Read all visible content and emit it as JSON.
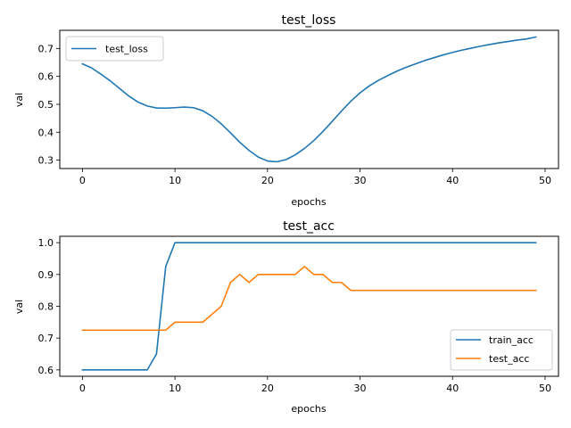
{
  "chart_data": [
    {
      "type": "line",
      "title": "test_loss",
      "xlabel": "epochs",
      "ylabel": "val",
      "xlim": [
        -2.45,
        51.45
      ],
      "ylim": [
        0.27,
        0.765
      ],
      "xticks": [
        "0",
        "10",
        "20",
        "30",
        "40",
        "50"
      ],
      "yticks": [
        "0.3",
        "0.4",
        "0.5",
        "0.6",
        "0.7"
      ],
      "grid": false,
      "legend": "upper-left",
      "x": [
        0,
        1,
        2,
        3,
        4,
        5,
        6,
        7,
        8,
        9,
        10,
        11,
        12,
        13,
        14,
        15,
        16,
        17,
        18,
        19,
        20,
        21,
        22,
        23,
        24,
        25,
        26,
        27,
        28,
        29,
        30,
        31,
        32,
        33,
        34,
        35,
        36,
        37,
        38,
        39,
        40,
        41,
        42,
        43,
        44,
        45,
        46,
        47,
        48,
        49
      ],
      "series": [
        {
          "name": "test_loss",
          "color": "#1f77b4",
          "values": [
            0.645,
            0.63,
            0.608,
            0.584,
            0.557,
            0.53,
            0.508,
            0.494,
            0.487,
            0.486,
            0.488,
            0.49,
            0.488,
            0.477,
            0.457,
            0.43,
            0.398,
            0.364,
            0.335,
            0.311,
            0.297,
            0.294,
            0.302,
            0.319,
            0.342,
            0.37,
            0.403,
            0.439,
            0.476,
            0.511,
            0.541,
            0.566,
            0.586,
            0.603,
            0.619,
            0.633,
            0.645,
            0.657,
            0.667,
            0.677,
            0.686,
            0.694,
            0.701,
            0.708,
            0.714,
            0.72,
            0.725,
            0.73,
            0.734,
            0.741
          ]
        }
      ]
    },
    {
      "type": "line",
      "title": "test_acc",
      "xlabel": "epochs",
      "ylabel": "val",
      "xlim": [
        -2.45,
        51.45
      ],
      "ylim": [
        0.58,
        1.02
      ],
      "xticks": [
        "0",
        "10",
        "20",
        "30",
        "40",
        "50"
      ],
      "yticks": [
        "0.6",
        "0.7",
        "0.8",
        "0.9",
        "1.0"
      ],
      "grid": false,
      "legend": "lower-right",
      "x": [
        0,
        1,
        2,
        3,
        4,
        5,
        6,
        7,
        8,
        9,
        10,
        11,
        12,
        13,
        14,
        15,
        16,
        17,
        18,
        19,
        20,
        21,
        22,
        23,
        24,
        25,
        26,
        27,
        28,
        29,
        30,
        31,
        32,
        33,
        34,
        35,
        36,
        37,
        38,
        39,
        40,
        41,
        42,
        43,
        44,
        45,
        46,
        47,
        48,
        49
      ],
      "series": [
        {
          "name": "train_acc",
          "color": "#1f77b4",
          "values": [
            0.6,
            0.6,
            0.6,
            0.6,
            0.6,
            0.6,
            0.6,
            0.6,
            0.65,
            0.925,
            1.0,
            1.0,
            1.0,
            1.0,
            1.0,
            1.0,
            1.0,
            1.0,
            1.0,
            1.0,
            1.0,
            1.0,
            1.0,
            1.0,
            1.0,
            1.0,
            1.0,
            1.0,
            1.0,
            1.0,
            1.0,
            1.0,
            1.0,
            1.0,
            1.0,
            1.0,
            1.0,
            1.0,
            1.0,
            1.0,
            1.0,
            1.0,
            1.0,
            1.0,
            1.0,
            1.0,
            1.0,
            1.0,
            1.0,
            1.0
          ]
        },
        {
          "name": "test_acc",
          "color": "#ff7f0e",
          "values": [
            0.725,
            0.725,
            0.725,
            0.725,
            0.725,
            0.725,
            0.725,
            0.725,
            0.725,
            0.725,
            0.75,
            0.75,
            0.75,
            0.75,
            0.775,
            0.8,
            0.875,
            0.9,
            0.875,
            0.9,
            0.9,
            0.9,
            0.9,
            0.9,
            0.925,
            0.9,
            0.9,
            0.875,
            0.875,
            0.85,
            0.85,
            0.85,
            0.85,
            0.85,
            0.85,
            0.85,
            0.85,
            0.85,
            0.85,
            0.85,
            0.85,
            0.85,
            0.85,
            0.85,
            0.85,
            0.85,
            0.85,
            0.85,
            0.85,
            0.85
          ]
        }
      ]
    }
  ]
}
